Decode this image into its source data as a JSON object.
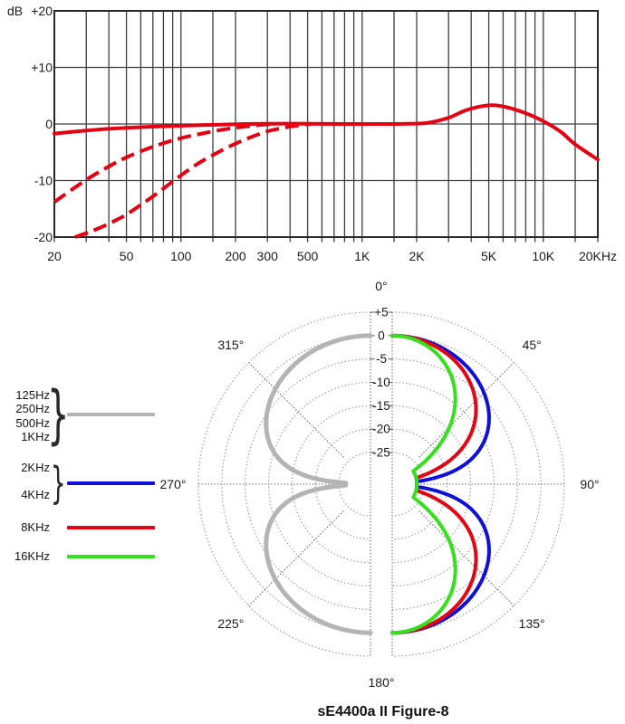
{
  "title": "sE4400a II Figure-8",
  "chart_data": [
    {
      "type": "line",
      "id": "frequency-response",
      "x_scale": "log",
      "x_range": [
        20,
        20000
      ],
      "y_range": [
        -20,
        20
      ],
      "y_unit_label": "dB",
      "grid": true,
      "curve_color": "#e50012",
      "grid_color": "#3f3f3f",
      "gridline_frequencies": [
        20,
        30,
        40,
        50,
        60,
        70,
        80,
        90,
        100,
        150,
        200,
        300,
        400,
        500,
        600,
        700,
        800,
        900,
        1000,
        1500,
        2000,
        3000,
        4000,
        5000,
        6000,
        7000,
        8000,
        9000,
        10000,
        15000,
        20000
      ],
      "x_ticks": [
        {
          "f": 20,
          "label": "20"
        },
        {
          "f": 50,
          "label": "50"
        },
        {
          "f": 100,
          "label": "100"
        },
        {
          "f": 200,
          "label": "200"
        },
        {
          "f": 300,
          "label": "300"
        },
        {
          "f": 500,
          "label": "500"
        },
        {
          "f": 1000,
          "label": "1K"
        },
        {
          "f": 2000,
          "label": "2K"
        },
        {
          "f": 5000,
          "label": "5K"
        },
        {
          "f": 10000,
          "label": "10K"
        },
        {
          "f": 20000,
          "label": "20KHz"
        }
      ],
      "y_ticks": [
        {
          "db": 20,
          "label": "+20"
        },
        {
          "db": 10,
          "label": "+10"
        },
        {
          "db": 0,
          "label": "0"
        },
        {
          "db": -10,
          "label": "-10"
        },
        {
          "db": -20,
          "label": "-20"
        }
      ],
      "series": [
        {
          "name": "on-axis-response",
          "style": "solid",
          "points": [
            [
              20,
              -1.7
            ],
            [
              28,
              -1.25
            ],
            [
              40,
              -0.85
            ],
            [
              60,
              -0.55
            ],
            [
              90,
              -0.35
            ],
            [
              130,
              -0.2
            ],
            [
              200,
              -0.05
            ],
            [
              300,
              0.05
            ],
            [
              500,
              0.05
            ],
            [
              800,
              0
            ],
            [
              1200,
              0
            ],
            [
              1800,
              0.05
            ],
            [
              2300,
              0.2
            ],
            [
              3000,
              1.1
            ],
            [
              3800,
              2.5
            ],
            [
              5000,
              3.3
            ],
            [
              6200,
              3.0
            ],
            [
              8000,
              1.9
            ],
            [
              10000,
              0.5
            ],
            [
              12500,
              -1.4
            ],
            [
              15000,
              -3.6
            ],
            [
              20000,
              -6.3
            ]
          ]
        },
        {
          "name": "bass-rolloff-moderate",
          "style": "dashed",
          "points": [
            [
              20,
              -13.8
            ],
            [
              25,
              -11.6
            ],
            [
              32,
              -9.3
            ],
            [
              40,
              -7.5
            ],
            [
              50,
              -5.9
            ],
            [
              65,
              -4.4
            ],
            [
              80,
              -3.4
            ],
            [
              100,
              -2.5
            ],
            [
              130,
              -1.7
            ],
            [
              170,
              -1.0
            ],
            [
              220,
              -0.5
            ],
            [
              280,
              -0.15
            ],
            [
              330,
              0
            ]
          ]
        },
        {
          "name": "bass-rolloff-steep",
          "style": "dashed",
          "points": [
            [
              26,
              -20
            ],
            [
              33,
              -18.8
            ],
            [
              42,
              -17.3
            ],
            [
              50,
              -16.0
            ],
            [
              60,
              -14.3
            ],
            [
              75,
              -12.1
            ],
            [
              95,
              -9.6
            ],
            [
              120,
              -7.3
            ],
            [
              150,
              -5.5
            ],
            [
              190,
              -3.8
            ],
            [
              240,
              -2.4
            ],
            [
              300,
              -1.3
            ],
            [
              380,
              -0.6
            ],
            [
              470,
              -0.15
            ],
            [
              520,
              0
            ]
          ]
        }
      ]
    },
    {
      "type": "polar",
      "id": "polar-pattern",
      "pattern": "figure-8",
      "rings_db": [
        5,
        0,
        -5,
        -10,
        -15,
        -20,
        -25
      ],
      "radial_ticks": [
        {
          "db": 5,
          "label": "+5"
        },
        {
          "db": 0,
          "label": "0"
        },
        {
          "db": -5,
          "label": "-5"
        },
        {
          "db": -10,
          "label": "-10"
        },
        {
          "db": -15,
          "label": "-15"
        },
        {
          "db": -20,
          "label": "-20"
        },
        {
          "db": -25,
          "label": "-25"
        }
      ],
      "angle_labels": [
        {
          "deg": 0,
          "label": "0°"
        },
        {
          "deg": 45,
          "label": "45°"
        },
        {
          "deg": 90,
          "label": "90°"
        },
        {
          "deg": 135,
          "label": "135°"
        },
        {
          "deg": 180,
          "label": "180°"
        },
        {
          "deg": 225,
          "label": "225°"
        },
        {
          "deg": 270,
          "label": "270°"
        },
        {
          "deg": 315,
          "label": "315°"
        }
      ],
      "clip_db": -26.5,
      "series": [
        {
          "name": "125Hz-1KHz",
          "color": "#b4b4b4",
          "side": "left",
          "exponent": 1.0,
          "width": 5
        },
        {
          "name": "2KHz-4KHz",
          "color": "#0f10d8",
          "side": "right",
          "exponent": 1.35,
          "width": 4
        },
        {
          "name": "8KHz",
          "color": "#e20613",
          "side": "right",
          "exponent": 2.2,
          "width": 4
        },
        {
          "name": "16KHz",
          "color": "#35e01c",
          "side": "right",
          "exponent": 4.8,
          "width": 4
        }
      ],
      "legend": {
        "groups": [
          {
            "labels": [
              "125Hz",
              "250Hz",
              "500Hz",
              "1KHz"
            ],
            "color": "#b4b4b4",
            "brace": true
          },
          {
            "labels": [
              "2KHz",
              "4KHz"
            ],
            "color": "#0f10d8",
            "brace": true
          },
          {
            "labels": [
              "8KHz"
            ],
            "color": "#e20613",
            "brace": false
          },
          {
            "labels": [
              "16KHz"
            ],
            "color": "#35e01c",
            "brace": false
          }
        ]
      }
    }
  ]
}
